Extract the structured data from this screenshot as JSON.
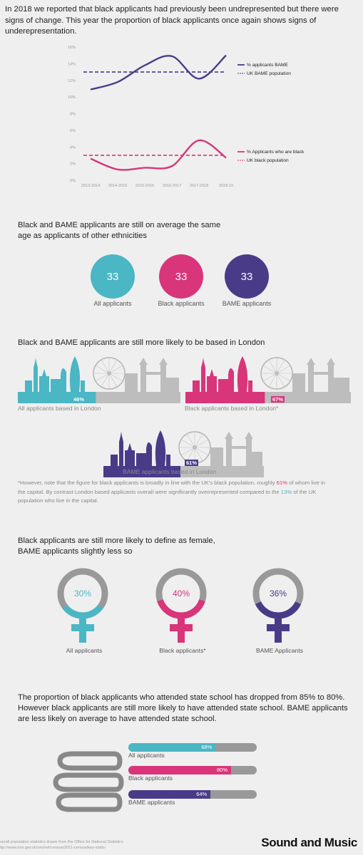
{
  "intro": "In 2018 we reported that black applicants had previously been undrepresented but there were signs of change. This year the proportion of black applicants once again shows signs of underepresentation.",
  "chart_data": {
    "type": "line",
    "categories": [
      "2013-2014",
      "2014-2015",
      "2015-2016",
      "2016-2017",
      "2017-2018",
      "2018-19"
    ],
    "ylim": [
      0,
      16
    ],
    "yticks": [
      "0%",
      "2%",
      "4%",
      "6%",
      "8%",
      "10%",
      "12%",
      "14%",
      "16%"
    ],
    "series": [
      {
        "name": "% applicants BAME",
        "values": [
          10.9,
          11.8,
          13.8,
          14.9,
          12.2,
          15.0
        ],
        "color": "#4a3b88",
        "style": "solid"
      },
      {
        "name": "UK BAME population",
        "values": [
          13,
          13,
          13,
          13,
          13,
          13
        ],
        "color": "#4a3b88",
        "style": "dashed"
      },
      {
        "name": "% Applicants who are black",
        "values": [
          2.6,
          1.3,
          1.5,
          1.7,
          4.8,
          2.7
        ],
        "color": "#d8357a",
        "style": "solid"
      },
      {
        "name": "UK black population",
        "values": [
          3,
          3,
          3,
          3,
          3,
          3
        ],
        "color": "#d8357a",
        "style": "dashed"
      }
    ]
  },
  "age": {
    "title": "Black and BAME applicants are still on average the same age as applicants of other ethnicities",
    "items": [
      {
        "value": "33",
        "label": "All applicants",
        "color": "#4bb6c4"
      },
      {
        "value": "33",
        "label": "Black applicants",
        "color": "#d8357a"
      },
      {
        "value": "33",
        "label": "BAME applicants",
        "color": "#4a3b88"
      }
    ]
  },
  "london": {
    "title": "Black and BAME applicants are still more likely to be based in London",
    "items": [
      {
        "pct": "46%",
        "label": "All applicants based in London",
        "color": "#4bb6c4"
      },
      {
        "pct": "67%",
        "label": "Black applicants based in London*",
        "color": "#d8357a"
      },
      {
        "pct": "61%",
        "label": "BAME applicants based in London",
        "color": "#4a3b88"
      }
    ],
    "footnote_a": "*However, note that the figure for black applicants is broadly in line with the UK's black population, roughly ",
    "footnote_pct1": "61%",
    "footnote_b": " of whom live in the capital. By contrast London based applicants overall were significantly overrepresented compared to the ",
    "footnote_pct2": "13%",
    "footnote_c": " of the UK population who live in the capital."
  },
  "gender": {
    "title_line1": "Black applicants are still more likely to  define as female,",
    "title_line2": "BAME applicants slightly less so",
    "items": [
      {
        "pct": "30%",
        "label": "All applicants",
        "color": "#4bb6c4",
        "fraction": 0.3
      },
      {
        "pct": "40%",
        "label": "Black applicants*",
        "color": "#d8357a",
        "fraction": 0.4
      },
      {
        "pct": "36%",
        "label": "BAME Applicants",
        "color": "#4a3b88",
        "fraction": 0.36
      }
    ]
  },
  "school": {
    "title": "The proportion of black applicants who attended state school has dropped from 85% to 80%. However black applicants are still more likely to have attended state school. BAME applicants are less likely on average to have attended state school.",
    "items": [
      {
        "pct": "68%",
        "label": "All applicants",
        "color": "#4bb6c4",
        "fraction": 0.68
      },
      {
        "pct": "80%",
        "label": "Black applicants",
        "color": "#d8357a",
        "fraction": 0.8
      },
      {
        "pct": "64%",
        "label": "BAME applicants",
        "color": "#4a3b88",
        "fraction": 0.64
      }
    ]
  },
  "footer": {
    "source_line1": "verall population statistics drawn from the Office for National Statistics",
    "source_line2": "ttp://www.ons.gov.uk/ons/rel/census/2011-census/key-statis-",
    "brand": "Sound and Music"
  }
}
